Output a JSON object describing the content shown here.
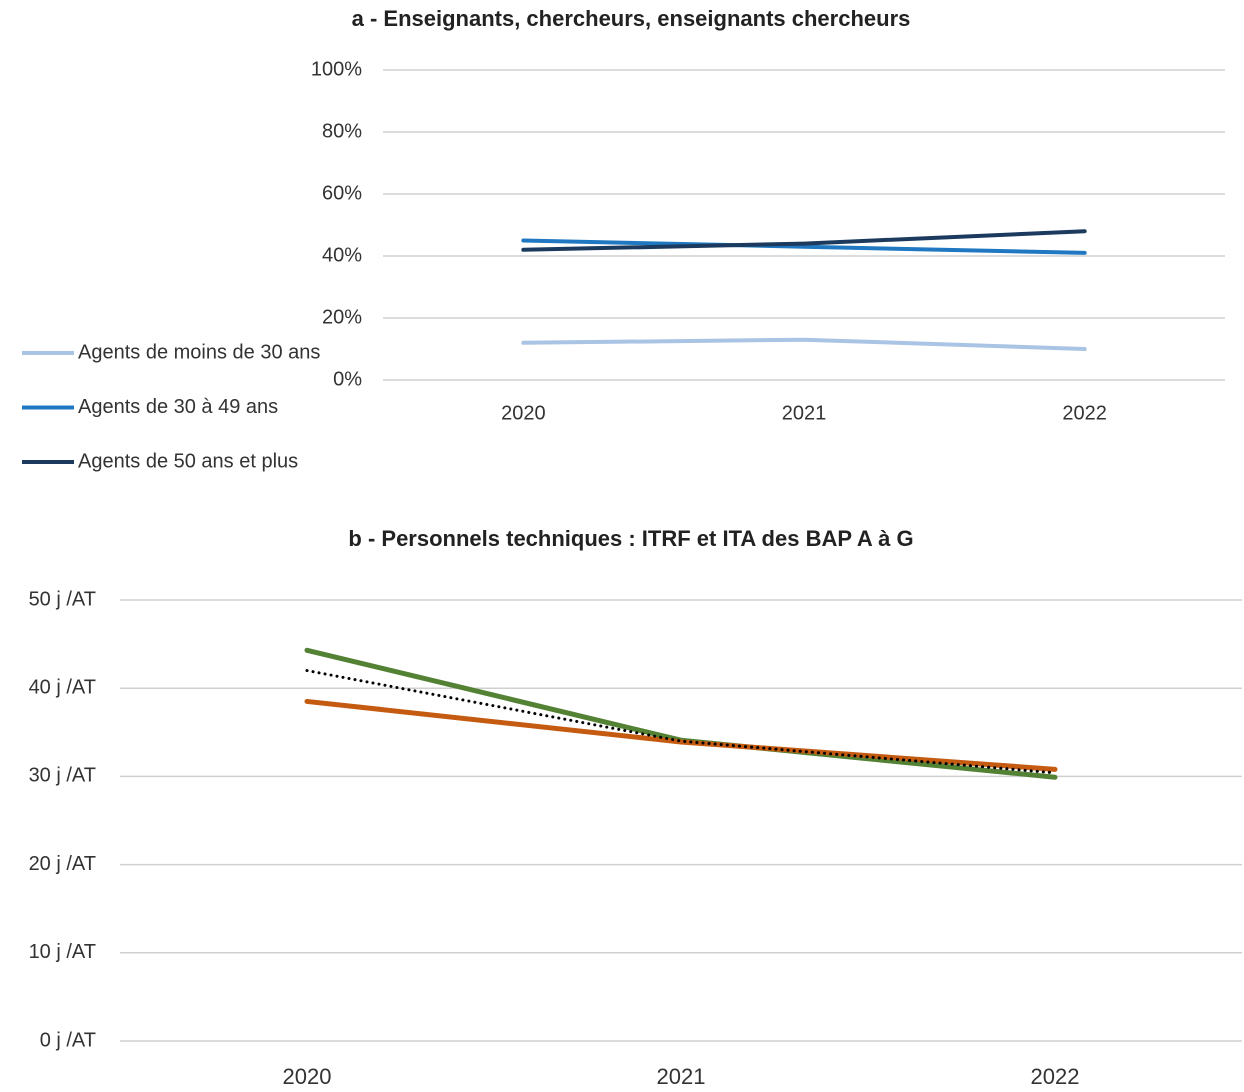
{
  "chart_data": [
    {
      "type": "line",
      "title": "a - Enseignants, chercheurs, enseignants chercheurs",
      "categories": [
        "2020",
        "2021",
        "2022"
      ],
      "series": [
        {
          "name": "Agents de moins de 30 ans",
          "color": "#a9c4e4",
          "values": [
            12,
            13,
            10
          ]
        },
        {
          "name": "Agents de 30 à 49 ans",
          "color": "#1f78c1",
          "values": [
            45,
            43,
            41
          ]
        },
        {
          "name": "Agents de 50 ans et plus",
          "color": "#1b3a5e",
          "values": [
            42,
            44,
            48
          ]
        }
      ],
      "ylim": [
        0,
        100
      ],
      "yticks": [
        {
          "value": 0,
          "label": "0%"
        },
        {
          "value": 20,
          "label": "20%"
        },
        {
          "value": 40,
          "label": "40%"
        },
        {
          "value": 60,
          "label": "60%"
        },
        {
          "value": 80,
          "label": "80%"
        },
        {
          "value": 100,
          "label": "100%"
        }
      ],
      "grid": true,
      "legend": "left"
    },
    {
      "type": "line",
      "title": "b - Personnels techniques : ITRF et ITA des BAP A à G",
      "categories": [
        "2020",
        "2021",
        "2022"
      ],
      "series": [
        {
          "color": "#548235",
          "values": [
            44.3,
            34.1,
            29.9
          ]
        },
        {
          "color": "#c55a11",
          "values": [
            38.5,
            33.9,
            30.8
          ]
        },
        {
          "color": "#000000",
          "dash": "dotted",
          "values": [
            42,
            34,
            30.4
          ]
        }
      ],
      "ylim": [
        0,
        50
      ],
      "yticks": [
        {
          "value": 0,
          "label": "0 j /AT"
        },
        {
          "value": 10,
          "label": "10 j /AT"
        },
        {
          "value": 20,
          "label": "20 j /AT"
        },
        {
          "value": 30,
          "label": "30 j /AT"
        },
        {
          "value": 40,
          "label": "40 j /AT"
        },
        {
          "value": 50,
          "label": "50 j /AT"
        }
      ],
      "grid": true
    }
  ]
}
